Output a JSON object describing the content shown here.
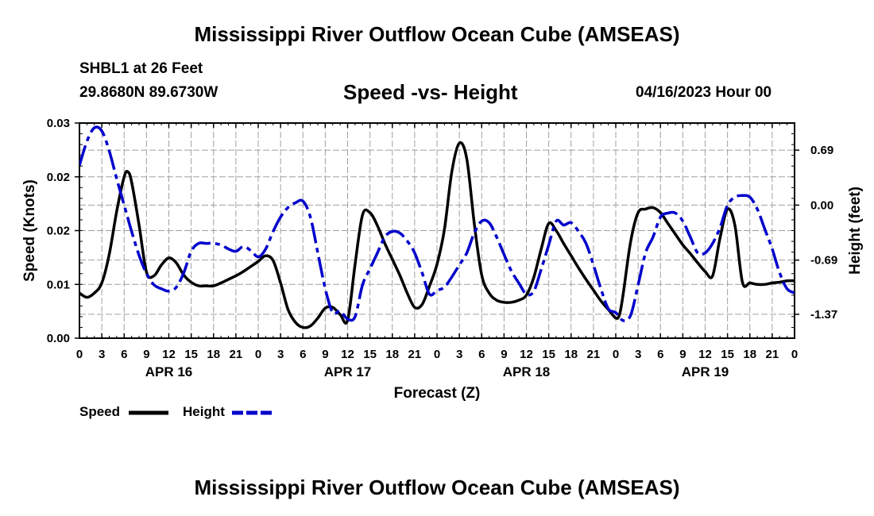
{
  "title": "Mississippi River Outflow Ocean Cube (AMSEAS)",
  "bottom_title": "Mississippi River Outflow Ocean Cube (AMSEAS)",
  "station_label": "SHBL1 at 26 Feet",
  "coords_label": "29.8680N  89.6730W",
  "subtitle": "Speed -vs- Height",
  "datetime_label": "04/16/2023 Hour 00",
  "colors": {
    "speed": "#000000",
    "height": "#0000cc",
    "grid": "#a0a0a0"
  },
  "chart_data": {
    "type": "line",
    "title": "Speed -vs- Height",
    "xlabel": "Forecast (Z)",
    "ylabel_left": "Speed (Knots)",
    "ylabel_right": "Height (feet)",
    "x_range_hours": [
      0,
      96
    ],
    "x_ticks": [
      {
        "h": 0,
        "label": "0"
      },
      {
        "h": 3,
        "label": "3"
      },
      {
        "h": 6,
        "label": "6"
      },
      {
        "h": 9,
        "label": "9"
      },
      {
        "h": 12,
        "label": "12"
      },
      {
        "h": 15,
        "label": "15"
      },
      {
        "h": 18,
        "label": "18"
      },
      {
        "h": 21,
        "label": "21"
      },
      {
        "h": 24,
        "label": "0"
      },
      {
        "h": 27,
        "label": "3"
      },
      {
        "h": 30,
        "label": "6"
      },
      {
        "h": 33,
        "label": "9"
      },
      {
        "h": 36,
        "label": "12"
      },
      {
        "h": 39,
        "label": "15"
      },
      {
        "h": 42,
        "label": "18"
      },
      {
        "h": 45,
        "label": "21"
      },
      {
        "h": 48,
        "label": "0"
      },
      {
        "h": 51,
        "label": "3"
      },
      {
        "h": 54,
        "label": "6"
      },
      {
        "h": 57,
        "label": "9"
      },
      {
        "h": 60,
        "label": "12"
      },
      {
        "h": 63,
        "label": "15"
      },
      {
        "h": 66,
        "label": "18"
      },
      {
        "h": 69,
        "label": "21"
      },
      {
        "h": 72,
        "label": "0"
      },
      {
        "h": 75,
        "label": "3"
      },
      {
        "h": 78,
        "label": "6"
      },
      {
        "h": 81,
        "label": "9"
      },
      {
        "h": 84,
        "label": "12"
      },
      {
        "h": 87,
        "label": "15"
      },
      {
        "h": 90,
        "label": "18"
      },
      {
        "h": 93,
        "label": "21"
      },
      {
        "h": 96,
        "label": "0"
      }
    ],
    "date_labels": [
      {
        "h": 12,
        "label": "APR 16"
      },
      {
        "h": 36,
        "label": "APR 17"
      },
      {
        "h": 60,
        "label": "APR 18"
      },
      {
        "h": 84,
        "label": "APR 19"
      }
    ],
    "y_left": {
      "range": [
        0,
        0.03
      ],
      "ticks": [
        {
          "v": 0.0,
          "label": "0.00"
        },
        {
          "v": 0.0075,
          "label": "0.01"
        },
        {
          "v": 0.015,
          "label": "0.02"
        },
        {
          "v": 0.0225,
          "label": "0.02"
        },
        {
          "v": 0.03,
          "label": "0.03"
        }
      ]
    },
    "y_right": {
      "range": [
        -1.67,
        1.03
      ],
      "ticks": [
        {
          "v": 0.69,
          "label": "0.69"
        },
        {
          "v": 0.0,
          "label": "0.00"
        },
        {
          "v": -0.69,
          "label": "-0.69"
        },
        {
          "v": -1.37,
          "label": "-1.37"
        }
      ]
    },
    "series": [
      {
        "name": "Speed",
        "axis": "left",
        "style": "solid",
        "x": [
          0,
          1,
          2,
          3,
          4,
          5,
          6,
          6.5,
          7,
          8,
          9,
          10,
          11,
          12,
          13,
          14,
          15,
          16,
          17,
          18,
          19,
          20,
          21,
          22,
          23,
          24,
          25,
          26,
          27,
          28,
          29,
          30,
          31,
          32,
          33,
          34,
          35,
          36,
          37,
          38,
          39,
          40,
          41,
          42,
          43,
          44,
          45,
          46,
          47,
          48,
          49,
          50,
          51,
          52,
          53,
          54,
          55,
          56,
          57,
          58,
          59,
          60,
          61,
          62,
          63,
          64,
          65,
          66,
          67,
          68,
          69,
          70,
          71,
          72,
          72.5,
          73,
          74,
          75,
          76,
          77,
          78,
          79,
          80,
          81,
          82,
          83,
          84,
          85,
          86,
          87,
          88,
          89,
          90,
          91,
          92,
          93,
          94,
          95,
          96
        ],
        "values": [
          0.0063,
          0.0057,
          0.0063,
          0.0077,
          0.0117,
          0.0177,
          0.0225,
          0.0232,
          0.0218,
          0.0158,
          0.0092,
          0.0087,
          0.0102,
          0.0112,
          0.0105,
          0.0088,
          0.0078,
          0.0073,
          0.0073,
          0.0073,
          0.0077,
          0.0082,
          0.0087,
          0.0093,
          0.01,
          0.0107,
          0.0115,
          0.0108,
          0.0077,
          0.004,
          0.0022,
          0.0015,
          0.0017,
          0.0028,
          0.0042,
          0.0043,
          0.0033,
          0.0025,
          0.0103,
          0.0172,
          0.0175,
          0.0157,
          0.0132,
          0.011,
          0.0088,
          0.0063,
          0.0043,
          0.0047,
          0.0073,
          0.0103,
          0.0152,
          0.0233,
          0.0272,
          0.025,
          0.016,
          0.0088,
          0.0063,
          0.0053,
          0.005,
          0.005,
          0.0053,
          0.006,
          0.0085,
          0.0125,
          0.016,
          0.015,
          0.0132,
          0.0115,
          0.0098,
          0.0082,
          0.0067,
          0.0052,
          0.004,
          0.0028,
          0.0033,
          0.0062,
          0.0135,
          0.0175,
          0.018,
          0.0182,
          0.0175,
          0.016,
          0.0145,
          0.013,
          0.0118,
          0.0105,
          0.0093,
          0.0087,
          0.014,
          0.018,
          0.0157,
          0.0078,
          0.0077,
          0.0075,
          0.0075,
          0.0077,
          0.0078,
          0.008,
          0.008
        ]
      },
      {
        "name": "Height",
        "axis": "right",
        "style": "dashed",
        "x": [
          0,
          1,
          2,
          3,
          4,
          5,
          6,
          7,
          8,
          9,
          10,
          11,
          12,
          13,
          14,
          15,
          16,
          17,
          18,
          19,
          20,
          21,
          22,
          23,
          24,
          25,
          26,
          27,
          28,
          29,
          30,
          31,
          32,
          33,
          34,
          35,
          36,
          37,
          38,
          39,
          40,
          41,
          42,
          43,
          44,
          45,
          46,
          47,
          48,
          49,
          50,
          51,
          52,
          53,
          54,
          55,
          56,
          57,
          58,
          59,
          60,
          61,
          62,
          63,
          64,
          65,
          66,
          67,
          68,
          69,
          70,
          71,
          72,
          73,
          74,
          75,
          76,
          77,
          78,
          79,
          80,
          81,
          82,
          83,
          84,
          85,
          86,
          87,
          88,
          89,
          90,
          91,
          92,
          93,
          94,
          95,
          96
        ],
        "values": [
          0.5,
          0.8,
          0.97,
          0.93,
          0.68,
          0.33,
          0.0,
          -0.33,
          -0.63,
          -0.86,
          -1.0,
          -1.05,
          -1.08,
          -1.03,
          -0.85,
          -0.58,
          -0.48,
          -0.48,
          -0.48,
          -0.5,
          -0.55,
          -0.58,
          -0.52,
          -0.57,
          -0.65,
          -0.55,
          -0.33,
          -0.15,
          -0.03,
          0.03,
          0.05,
          -0.15,
          -0.6,
          -1.05,
          -1.35,
          -1.33,
          -1.43,
          -1.4,
          -1.0,
          -0.8,
          -0.6,
          -0.4,
          -0.33,
          -0.35,
          -0.45,
          -0.6,
          -0.85,
          -1.12,
          -1.07,
          -1.03,
          -0.9,
          -0.75,
          -0.6,
          -0.35,
          -0.2,
          -0.22,
          -0.4,
          -0.62,
          -0.83,
          -0.98,
          -1.12,
          -1.08,
          -0.8,
          -0.5,
          -0.2,
          -0.25,
          -0.22,
          -0.33,
          -0.48,
          -0.75,
          -1.05,
          -1.3,
          -1.35,
          -1.45,
          -1.38,
          -1.0,
          -0.6,
          -0.4,
          -0.15,
          -0.1,
          -0.1,
          -0.2,
          -0.4,
          -0.6,
          -0.6,
          -0.48,
          -0.28,
          0.0,
          0.1,
          0.12,
          0.1,
          -0.05,
          -0.3,
          -0.55,
          -0.85,
          -1.05,
          -1.1
        ]
      }
    ],
    "legend": [
      {
        "label": "Speed",
        "color": "#000000",
        "style": "solid"
      },
      {
        "label": "Height",
        "color": "#0000cc",
        "style": "dashed"
      }
    ],
    "grid": true
  }
}
